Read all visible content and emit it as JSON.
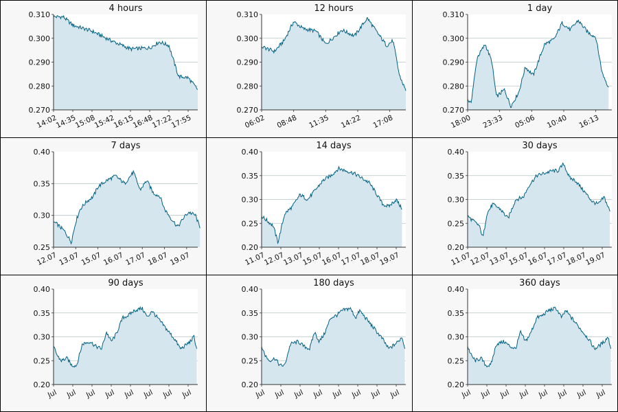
{
  "colors": {
    "line": "#006080",
    "fill": "#d6e6ee",
    "grid": "#b9c4c8",
    "panel_bg": "#f7f7f7",
    "plot_bg": "#ffffff",
    "axis": "#333333"
  },
  "chart_data": [
    {
      "type": "area",
      "title": "4 hours",
      "ylim": [
        0.27,
        0.31
      ],
      "yticks": [
        "0.270",
        "0.280",
        "0.290",
        "0.300",
        "0.310"
      ],
      "xticks": [
        "14:02",
        "14:35",
        "15:08",
        "15:42",
        "16:15",
        "16:48",
        "17:22",
        "17:55"
      ],
      "x": [
        0,
        0.5,
        1,
        2,
        3,
        4,
        5,
        5.5,
        6,
        6.5,
        7,
        7.5
      ],
      "values": [
        0.309,
        0.309,
        0.3055,
        0.303,
        0.299,
        0.2955,
        0.296,
        0.2985,
        0.297,
        0.284,
        0.2835,
        0.2785
      ]
    },
    {
      "type": "area",
      "title": "12 hours",
      "ylim": [
        0.27,
        0.31
      ],
      "yticks": [
        "0.270",
        "0.280",
        "0.290",
        "0.300",
        "0.310"
      ],
      "xticks": [
        "06:02",
        "08:48",
        "11:35",
        "14:22",
        "17:08"
      ],
      "x": [
        0,
        0.4,
        0.7,
        1,
        1.3,
        1.7,
        2,
        2.5,
        2.9,
        3.3,
        3.6,
        3.9,
        4.1,
        4.3,
        4.5
      ],
      "values": [
        0.2965,
        0.2945,
        0.299,
        0.307,
        0.304,
        0.303,
        0.2975,
        0.3035,
        0.301,
        0.3085,
        0.3025,
        0.297,
        0.299,
        0.2845,
        0.278
      ]
    },
    {
      "type": "area",
      "title": "1 day",
      "ylim": [
        0.27,
        0.31
      ],
      "yticks": [
        "0.270",
        "0.280",
        "0.290",
        "0.300",
        "0.310"
      ],
      "xticks": [
        "18:00",
        "23:33",
        "05:06",
        "10:40",
        "16:13"
      ],
      "x": [
        0,
        0.1,
        0.3,
        0.55,
        0.75,
        0.9,
        1.15,
        1.35,
        1.6,
        1.8,
        2.05,
        2.4,
        2.7,
        2.95,
        3.2,
        3.45,
        3.75,
        4.0,
        4.2,
        4.4
      ],
      "values": [
        0.2745,
        0.2725,
        0.292,
        0.2975,
        0.2905,
        0.2755,
        0.2785,
        0.2715,
        0.2775,
        0.288,
        0.2845,
        0.2975,
        0.2995,
        0.3065,
        0.3035,
        0.3075,
        0.3025,
        0.3005,
        0.2855,
        0.2795
      ]
    },
    {
      "type": "area",
      "title": "7 days",
      "ylim": [
        0.25,
        0.4
      ],
      "yticks": [
        "0.25",
        "0.30",
        "0.35",
        "0.40"
      ],
      "xticks": [
        "12.07",
        "13.07",
        "15.07",
        "16.07",
        "17.07",
        "18.07",
        "19.07"
      ],
      "x": [
        0,
        0.2,
        0.5,
        0.8,
        1.0,
        1.2,
        1.5,
        1.8,
        2.0,
        2.4,
        2.8,
        3.2,
        3.6,
        3.9,
        4.2,
        4.5,
        4.8,
        5.0,
        5.3,
        5.6,
        5.9,
        6.1,
        6.4,
        6.6
      ],
      "values": [
        0.29,
        0.285,
        0.275,
        0.258,
        0.29,
        0.31,
        0.322,
        0.33,
        0.345,
        0.355,
        0.362,
        0.35,
        0.368,
        0.34,
        0.355,
        0.335,
        0.33,
        0.31,
        0.295,
        0.282,
        0.298,
        0.305,
        0.3,
        0.28
      ]
    },
    {
      "type": "area",
      "title": "14 days",
      "ylim": [
        0.2,
        0.4
      ],
      "yticks": [
        "0.20",
        "0.25",
        "0.30",
        "0.35",
        "0.40"
      ],
      "xticks": [
        "11.07",
        "12.07",
        "13.07",
        "15.07",
        "16.07",
        "17.07",
        "18.07",
        "19.07"
      ],
      "x": [
        0,
        0.3,
        0.6,
        0.85,
        1.2,
        1.6,
        2.0,
        2.4,
        2.8,
        3.2,
        3.6,
        4.0,
        4.4,
        4.8,
        5.2,
        5.6,
        6.0,
        6.3,
        6.6,
        7.0,
        7.3
      ],
      "values": [
        0.265,
        0.255,
        0.245,
        0.21,
        0.27,
        0.285,
        0.31,
        0.3,
        0.32,
        0.34,
        0.35,
        0.365,
        0.36,
        0.355,
        0.345,
        0.335,
        0.31,
        0.29,
        0.285,
        0.3,
        0.28
      ]
    },
    {
      "type": "area",
      "title": "30 days",
      "ylim": [
        0.2,
        0.4
      ],
      "yticks": [
        "0.20",
        "0.25",
        "0.30",
        "0.35",
        "0.40"
      ],
      "xticks": [
        "11.07",
        "12.07",
        "13.07",
        "15.07",
        "16.07",
        "17.07",
        "18.07",
        "19.07"
      ],
      "x": [
        0,
        0.3,
        0.6,
        0.8,
        1.0,
        1.3,
        1.7,
        2.1,
        2.5,
        2.9,
        3.2,
        3.6,
        4.0,
        4.4,
        4.7,
        5.0,
        5.3,
        5.6,
        5.9,
        6.2,
        6.5,
        6.8,
        7.1,
        7.4
      ],
      "values": [
        0.265,
        0.255,
        0.245,
        0.22,
        0.27,
        0.29,
        0.28,
        0.26,
        0.3,
        0.305,
        0.33,
        0.35,
        0.355,
        0.36,
        0.36,
        0.375,
        0.345,
        0.34,
        0.325,
        0.31,
        0.295,
        0.29,
        0.305,
        0.275
      ]
    },
    {
      "type": "area",
      "title": "90 days",
      "ylim": [
        0.2,
        0.4
      ],
      "yticks": [
        "0.20",
        "0.25",
        "0.30",
        "0.35",
        "0.40"
      ],
      "xticks": [
        "Jul",
        "Jul",
        "Jul",
        "Jul",
        "Jul",
        "Jul",
        "Jul",
        "Jul"
      ],
      "x": [
        0,
        0.2,
        0.4,
        0.7,
        0.95,
        1.2,
        1.5,
        1.9,
        2.2,
        2.5,
        2.75,
        3.0,
        3.25,
        3.6,
        3.9,
        4.2,
        4.6,
        4.9,
        5.1,
        5.4,
        5.7,
        6.0,
        6.3,
        6.6,
        6.8,
        7.1,
        7.3,
        7.45
      ],
      "values": [
        0.28,
        0.26,
        0.25,
        0.255,
        0.24,
        0.24,
        0.285,
        0.29,
        0.28,
        0.275,
        0.31,
        0.29,
        0.305,
        0.34,
        0.345,
        0.355,
        0.36,
        0.34,
        0.355,
        0.34,
        0.325,
        0.31,
        0.295,
        0.275,
        0.28,
        0.29,
        0.3,
        0.275
      ]
    },
    {
      "type": "area",
      "title": "180 days",
      "ylim": [
        0.2,
        0.4
      ],
      "yticks": [
        "0.20",
        "0.25",
        "0.30",
        "0.35",
        "0.40"
      ],
      "xticks": [
        "Jul",
        "Jul",
        "Jul",
        "Jul",
        "Jul",
        "Jul",
        "Jul",
        "Jul"
      ],
      "x": [
        0,
        0.2,
        0.4,
        0.7,
        0.95,
        1.2,
        1.5,
        1.9,
        2.2,
        2.5,
        2.75,
        3.0,
        3.25,
        3.6,
        3.9,
        4.2,
        4.6,
        4.9,
        5.1,
        5.4,
        5.7,
        6.0,
        6.3,
        6.6,
        6.8,
        7.1,
        7.3,
        7.45
      ],
      "values": [
        0.28,
        0.26,
        0.25,
        0.255,
        0.24,
        0.24,
        0.285,
        0.29,
        0.28,
        0.275,
        0.31,
        0.29,
        0.305,
        0.34,
        0.345,
        0.355,
        0.36,
        0.34,
        0.355,
        0.34,
        0.325,
        0.31,
        0.295,
        0.275,
        0.28,
        0.29,
        0.3,
        0.275
      ]
    },
    {
      "type": "area",
      "title": "360 days",
      "ylim": [
        0.2,
        0.4
      ],
      "yticks": [
        "0.20",
        "0.25",
        "0.30",
        "0.35",
        "0.40"
      ],
      "xticks": [
        "Jul",
        "Jul",
        "Jul",
        "Jul",
        "Jul",
        "Jul",
        "Jul",
        "Jul"
      ],
      "x": [
        0,
        0.2,
        0.4,
        0.7,
        0.95,
        1.2,
        1.5,
        1.9,
        2.2,
        2.5,
        2.75,
        3.0,
        3.25,
        3.6,
        3.9,
        4.2,
        4.6,
        4.9,
        5.1,
        5.4,
        5.7,
        6.0,
        6.3,
        6.6,
        6.8,
        7.1,
        7.3,
        7.45
      ],
      "values": [
        0.28,
        0.26,
        0.25,
        0.255,
        0.24,
        0.24,
        0.285,
        0.29,
        0.28,
        0.275,
        0.31,
        0.29,
        0.305,
        0.34,
        0.345,
        0.355,
        0.36,
        0.34,
        0.355,
        0.34,
        0.325,
        0.31,
        0.295,
        0.275,
        0.28,
        0.29,
        0.3,
        0.275
      ]
    }
  ]
}
